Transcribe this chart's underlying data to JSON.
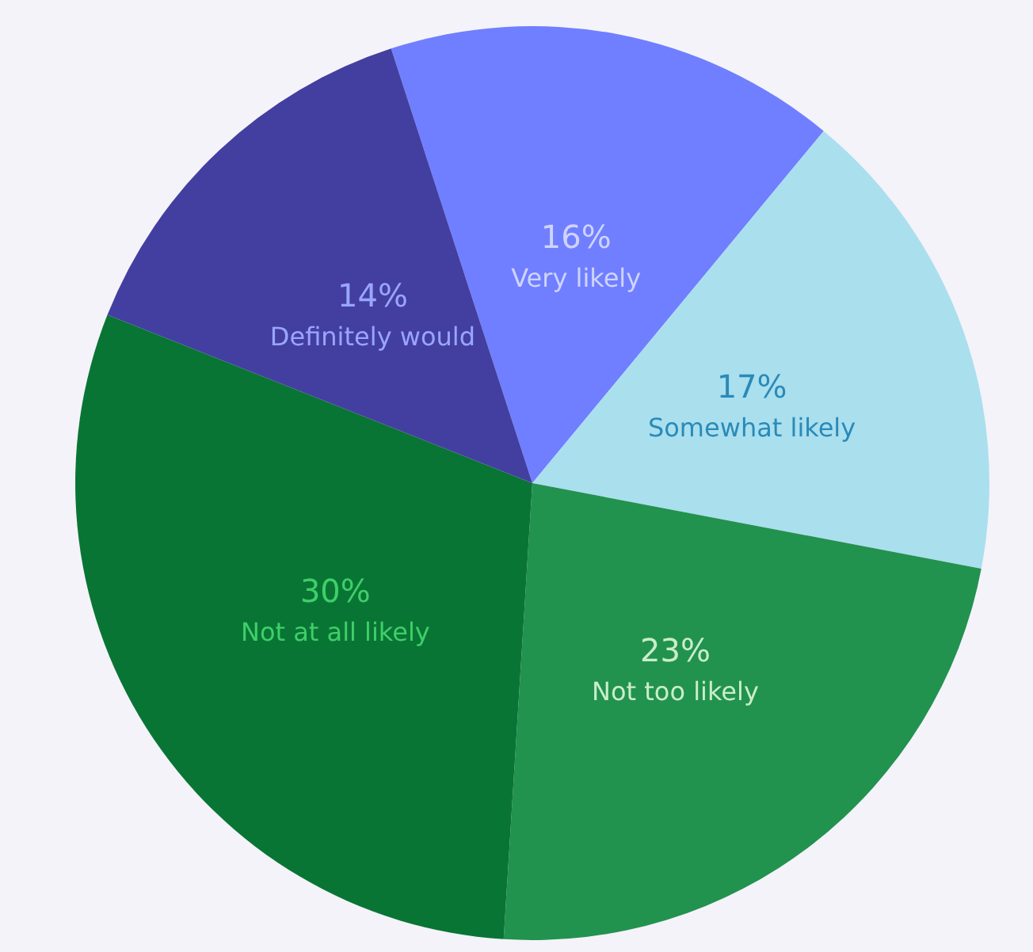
{
  "chart_data": {
    "type": "pie",
    "categories": [
      "Very likely",
      "Somewhat likely",
      "Not too likely",
      "Not at all likely",
      "Definitely would"
    ],
    "values": [
      16,
      17,
      23,
      30,
      14
    ],
    "value_labels": [
      "16%",
      "17%",
      "23%",
      "30%",
      "14%"
    ],
    "colors": [
      "#6f7fff",
      "#aadfee",
      "#22924f",
      "#097534",
      "#433fa0"
    ]
  }
}
